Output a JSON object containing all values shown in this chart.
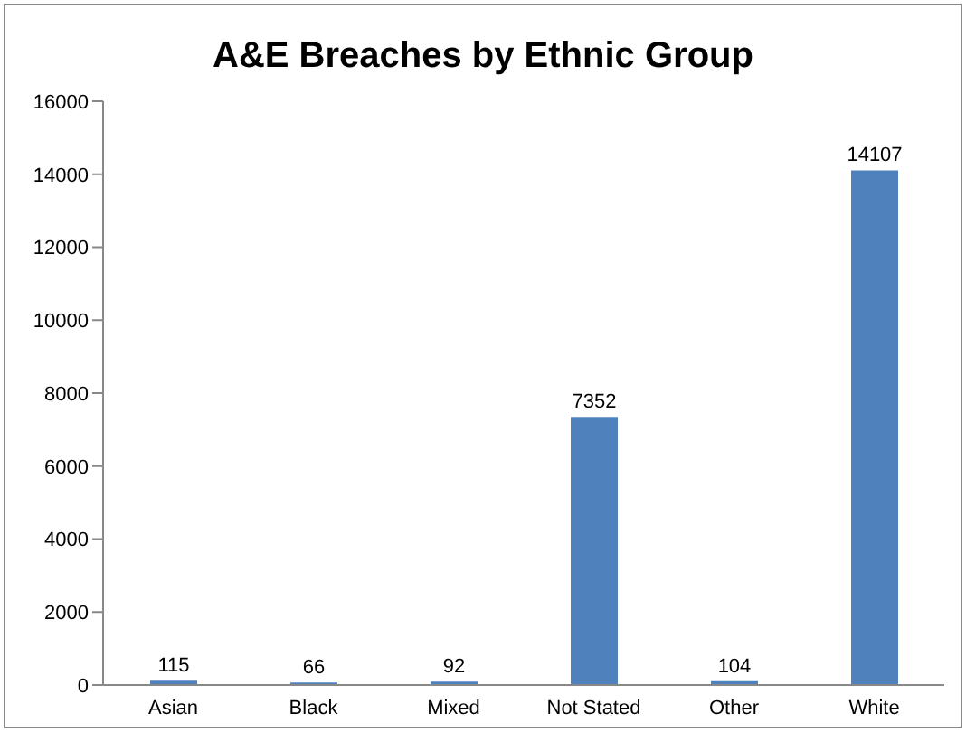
{
  "chart_data": {
    "type": "bar",
    "title": "A&E Breaches by Ethnic Group",
    "categories": [
      "Asian",
      "Black",
      "Mixed",
      "Not Stated",
      "Other",
      "White"
    ],
    "values": [
      115,
      66,
      92,
      7352,
      104,
      14107
    ],
    "color": "#4f81bd",
    "ylim": [
      0,
      16000
    ],
    "yticks": [
      0,
      2000,
      4000,
      6000,
      8000,
      10000,
      12000,
      14000,
      16000
    ],
    "grid": false,
    "legend": false,
    "data_labels": true
  }
}
